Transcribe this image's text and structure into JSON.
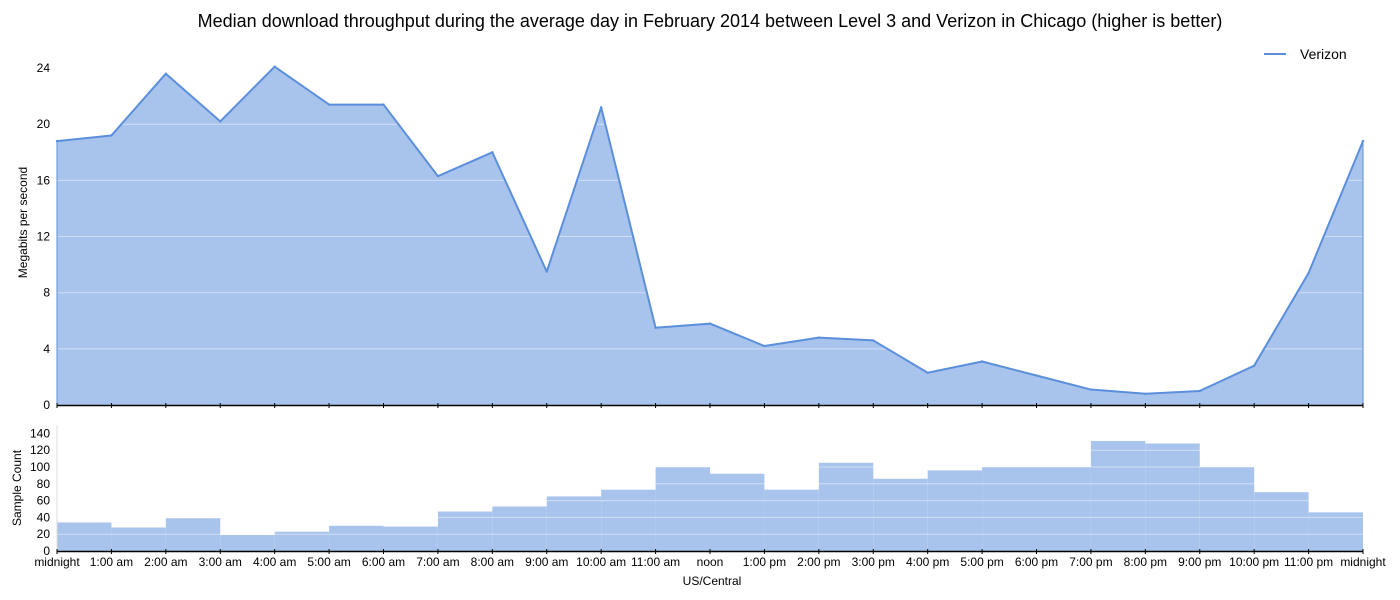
{
  "chart_data": [
    {
      "type": "area",
      "title": "Median download throughput during the average day in February 2014 between Level 3 and Verizon in Chicago (higher is better)",
      "xlabel": "",
      "ylabel": "Megabits per second",
      "ylim": [
        0,
        26
      ],
      "yticks": [
        0,
        4,
        8,
        12,
        16,
        20,
        24
      ],
      "grid": true,
      "legend": {
        "placement": "top-right"
      },
      "series": [
        {
          "name": "Verizon",
          "color": "#5b8fdb",
          "fill": "#a9c4ec",
          "x": [
            0,
            1,
            2,
            3,
            4,
            5,
            6,
            7,
            8,
            9,
            10,
            11,
            12,
            13,
            14,
            15,
            16,
            17,
            18,
            19,
            20,
            21,
            22,
            23,
            24
          ],
          "values": [
            18.8,
            19.2,
            23.6,
            20.2,
            24.1,
            21.4,
            21.4,
            16.3,
            18.0,
            9.5,
            21.2,
            5.5,
            5.8,
            4.2,
            4.8,
            4.6,
            2.3,
            3.1,
            2.1,
            1.1,
            0.8,
            1.0,
            2.8,
            9.4,
            18.8
          ]
        }
      ]
    },
    {
      "type": "bar",
      "xlabel": "US/Central",
      "ylabel": "Sample Count",
      "ylim": [
        0,
        150
      ],
      "yticks": [
        0,
        20,
        40,
        60,
        80,
        100,
        120,
        140
      ],
      "grid": true,
      "color": "#a9c4ec",
      "categories": [
        "midnight",
        "1:00 am",
        "2:00 am",
        "3:00 am",
        "4:00 am",
        "5:00 am",
        "6:00 am",
        "7:00 am",
        "8:00 am",
        "9:00 am",
        "10:00 am",
        "11:00 am",
        "noon",
        "1:00 pm",
        "2:00 pm",
        "3:00 pm",
        "4:00 pm",
        "5:00 pm",
        "6:00 pm",
        "7:00 pm",
        "8:00 pm",
        "9:00 pm",
        "10:00 pm",
        "11:00 pm"
      ],
      "values": [
        34,
        28,
        39,
        19,
        23,
        30,
        29,
        47,
        53,
        65,
        73,
        100,
        92,
        73,
        105,
        86,
        96,
        100,
        100,
        131,
        128,
        100,
        70,
        46
      ]
    }
  ],
  "x_tick_labels": [
    "midnight",
    "1:00 am",
    "2:00 am",
    "3:00 am",
    "4:00 am",
    "5:00 am",
    "6:00 am",
    "7:00 am",
    "8:00 am",
    "9:00 am",
    "10:00 am",
    "11:00 am",
    "noon",
    "1:00 pm",
    "2:00 pm",
    "3:00 pm",
    "4:00 pm",
    "5:00 pm",
    "6:00 pm",
    "7:00 pm",
    "8:00 pm",
    "9:00 pm",
    "10:00 pm",
    "11:00 pm",
    "midnight"
  ]
}
